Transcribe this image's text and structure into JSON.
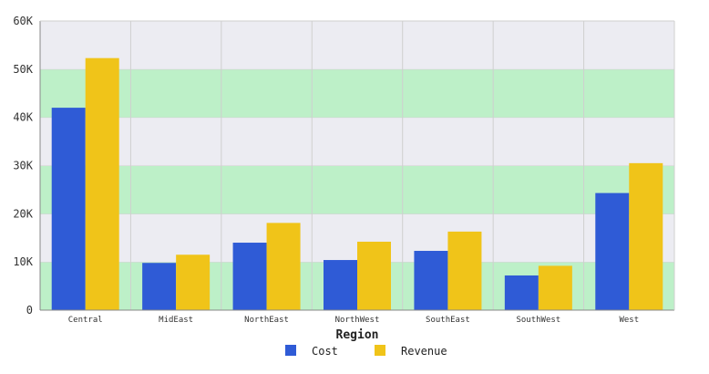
{
  "chart_data": {
    "type": "bar",
    "title": "",
    "xlabel": "Region",
    "ylabel": "",
    "ylim": [
      0,
      60000
    ],
    "yticks": [
      "0",
      "10K",
      "20K",
      "30K",
      "40K",
      "50K",
      "60K"
    ],
    "categories": [
      "Central",
      "MidEast",
      "NorthEast",
      "NorthWest",
      "SouthEast",
      "SouthWest",
      "West"
    ],
    "series": [
      {
        "name": "Cost",
        "color": "#2f5bd6",
        "values": [
          42000,
          9800,
          14000,
          10400,
          12300,
          7200,
          24300
        ]
      },
      {
        "name": "Revenue",
        "color": "#f0c419",
        "values": [
          52300,
          11500,
          18100,
          14200,
          16300,
          9200,
          30500
        ]
      }
    ],
    "legend_position": "bottom",
    "grid": true,
    "band_colors": [
      "#bdf0c8",
      "#ececf2"
    ]
  }
}
